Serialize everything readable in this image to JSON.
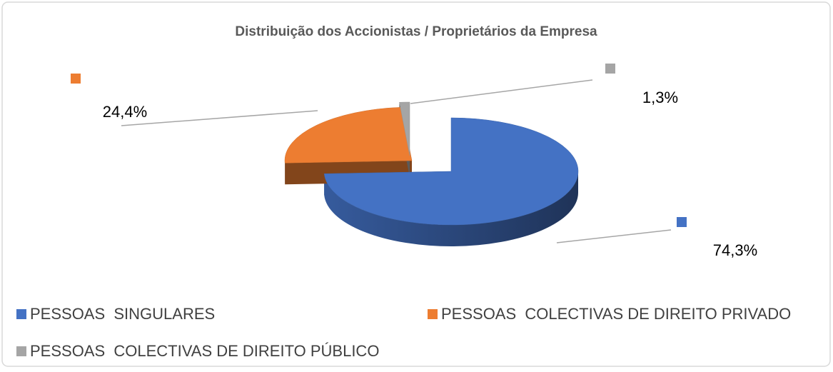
{
  "chart_data": {
    "type": "pie",
    "title": "Distribuição dos Accionistas / Proprietários da Empresa",
    "categories": [
      "PESSOAS  SINGULARES",
      "PESSOAS  COLECTIVAS DE DIREITO PRIVADO",
      "PESSOAS  COLECTIVAS DE DIREITO PÚBLICO"
    ],
    "values": [
      74.3,
      24.4,
      1.3
    ],
    "value_labels": [
      "74,3%",
      "24,4%",
      "1,3%"
    ],
    "colors": [
      "#4472c4",
      "#ed7d31",
      "#a5a5a5"
    ],
    "legend": "bottom"
  }
}
